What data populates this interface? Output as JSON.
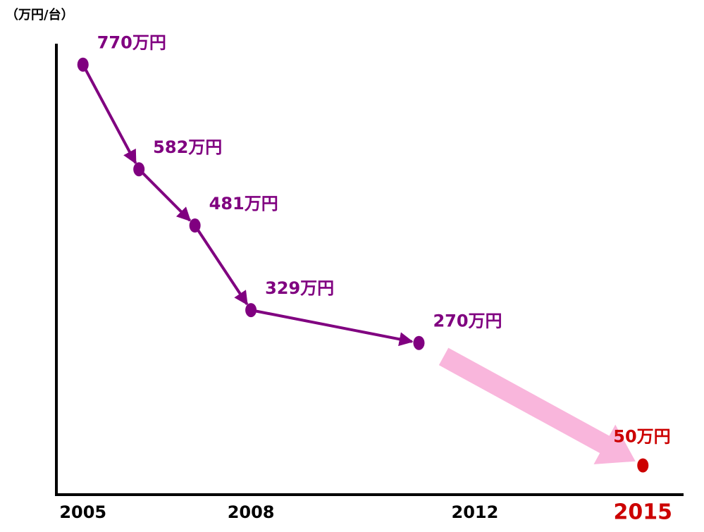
{
  "chart_data": {
    "type": "line",
    "y_label": "（万円/台）",
    "x": [
      2005,
      2006,
      2007,
      2008,
      2011,
      2015
    ],
    "values": [
      770,
      582,
      481,
      329,
      270,
      50
    ],
    "value_labels": [
      "770万円",
      "582万円",
      "481万円",
      "329万円",
      "270万円",
      "50万円"
    ],
    "point_colors": [
      "#800080",
      "#800080",
      "#800080",
      "#800080",
      "#800080",
      "#cc0000"
    ],
    "segment_colors": [
      "#800080",
      "#800080",
      "#800080",
      "#800080",
      "#f9b6dc"
    ],
    "xlim": [
      2004.5,
      2015.5
    ],
    "xticks": [
      2005,
      2008,
      2012,
      2015
    ],
    "xtick_colors": [
      "#000000",
      "#000000",
      "#000000",
      "#cc0000"
    ],
    "ylim": [
      0,
      800
    ]
  }
}
